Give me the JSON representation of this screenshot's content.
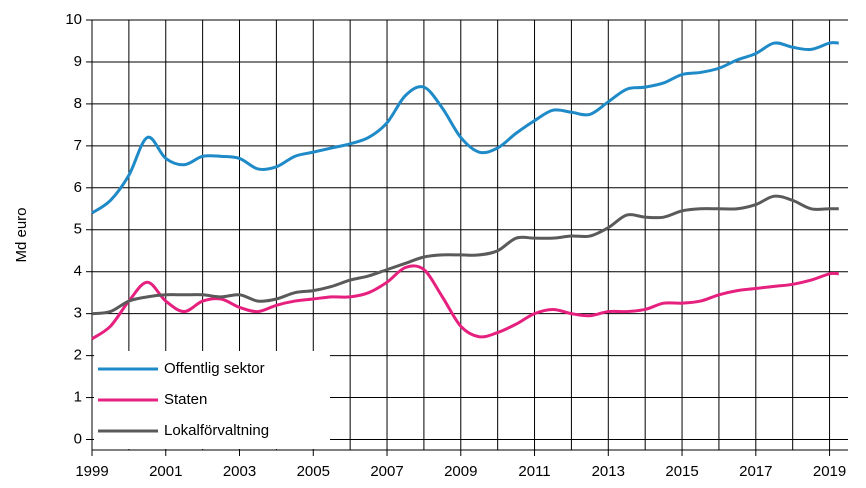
{
  "chart_data": {
    "type": "line",
    "ylabel": "Md euro",
    "x": [
      1999,
      1999.5,
      2000,
      2000.5,
      2001,
      2001.5,
      2002,
      2002.5,
      2003,
      2003.5,
      2004,
      2004.5,
      2005,
      2005.5,
      2006,
      2006.5,
      2007,
      2007.5,
      2008,
      2008.5,
      2009,
      2009.5,
      2010,
      2010.5,
      2011,
      2011.5,
      2012,
      2012.5,
      2013,
      2013.5,
      2014,
      2014.5,
      2015,
      2015.5,
      2016,
      2016.5,
      2017,
      2017.5,
      2018,
      2018.5,
      2019,
      2019.25
    ],
    "series": [
      {
        "name": "Offentlig sektor",
        "color": "#1f8ac8",
        "values": [
          5.4,
          5.7,
          6.3,
          7.2,
          6.7,
          6.55,
          6.75,
          6.75,
          6.7,
          6.45,
          6.5,
          6.75,
          6.85,
          6.95,
          7.05,
          7.2,
          7.55,
          8.2,
          8.4,
          7.9,
          7.2,
          6.85,
          6.95,
          7.3,
          7.6,
          7.85,
          7.8,
          7.75,
          8.05,
          8.35,
          8.4,
          8.5,
          8.7,
          8.75,
          8.85,
          9.05,
          9.2,
          9.45,
          9.35,
          9.3,
          9.45,
          9.45
        ]
      },
      {
        "name": "Staten",
        "color": "#e6207e",
        "values": [
          2.4,
          2.7,
          3.3,
          3.75,
          3.3,
          3.05,
          3.3,
          3.35,
          3.15,
          3.05,
          3.2,
          3.3,
          3.35,
          3.4,
          3.4,
          3.5,
          3.75,
          4.1,
          4.05,
          3.4,
          2.7,
          2.45,
          2.55,
          2.75,
          3.0,
          3.1,
          3.0,
          2.95,
          3.05,
          3.05,
          3.1,
          3.25,
          3.25,
          3.3,
          3.45,
          3.55,
          3.6,
          3.65,
          3.7,
          3.8,
          3.95,
          3.95
        ]
      },
      {
        "name": "Lokalförvaltning",
        "color": "#5a5a5a",
        "values": [
          3.0,
          3.05,
          3.3,
          3.4,
          3.45,
          3.45,
          3.45,
          3.4,
          3.45,
          3.3,
          3.35,
          3.5,
          3.55,
          3.65,
          3.8,
          3.9,
          4.05,
          4.2,
          4.35,
          4.4,
          4.4,
          4.4,
          4.5,
          4.8,
          4.8,
          4.8,
          4.85,
          4.85,
          5.05,
          5.35,
          5.3,
          5.3,
          5.45,
          5.5,
          5.5,
          5.5,
          5.6,
          5.8,
          5.7,
          5.5,
          5.5,
          5.5
        ]
      }
    ],
    "xlim": [
      1999,
      2019.5
    ],
    "xticks": [
      1999,
      2001,
      2003,
      2005,
      2007,
      2009,
      2011,
      2013,
      2015,
      2017,
      2019
    ],
    "xminor": [
      2000,
      2002,
      2004,
      2006,
      2008,
      2010,
      2012,
      2014,
      2016,
      2018
    ],
    "ylim": [
      -0.25,
      10
    ],
    "yticks": [
      0,
      1,
      2,
      3,
      4,
      5,
      6,
      7,
      8,
      9,
      10
    ],
    "grid": true,
    "legend": "lower left"
  }
}
